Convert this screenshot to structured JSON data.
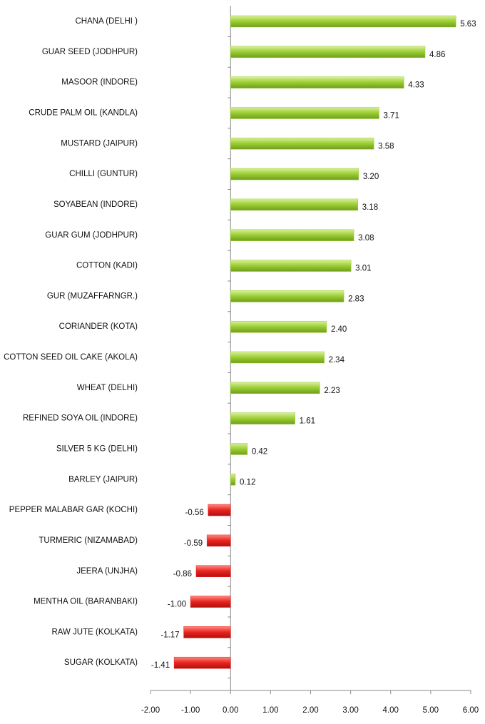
{
  "chart_data": {
    "type": "hbar",
    "categories": [
      "CHANA (DELHI )",
      "GUAR SEED (JODHPUR)",
      "MASOOR (INDORE)",
      "CRUDE PALM OIL (KANDLA)",
      "MUSTARD (JAIPUR)",
      "CHILLI (GUNTUR)",
      "SOYABEAN (INDORE)",
      "GUAR GUM (JODHPUR)",
      "COTTON (KADI)",
      "GUR (MUZAFFARNGR.)",
      "CORIANDER (KOTA)",
      "COTTON SEED OIL CAKE (AKOLA)",
      "WHEAT (DELHI)",
      "REFINED SOYA OIL (INDORE)",
      "SILVER 5 KG (DELHI)",
      "BARLEY (JAIPUR)",
      "PEPPER MALABAR GAR (KOCHI)",
      "TURMERIC (NIZAMABAD)",
      "JEERA (UNJHA)",
      "MENTHA OIL (BARANBAKI)",
      "RAW JUTE (KOLKATA)",
      "SUGAR (KOLKATA)"
    ],
    "values": [
      5.63,
      4.86,
      4.33,
      3.71,
      3.58,
      3.2,
      3.18,
      3.08,
      3.01,
      2.83,
      2.4,
      2.34,
      2.23,
      1.61,
      0.42,
      0.12,
      -0.56,
      -0.59,
      -0.86,
      -1.0,
      -1.17,
      -1.41
    ],
    "value_labels": [
      "5.63",
      "4.86",
      "4.33",
      "3.71",
      "3.58",
      "3.20",
      "3.18",
      "3.08",
      "3.01",
      "2.83",
      "2.40",
      "2.34",
      "2.23",
      "1.61",
      "0.42",
      "0.12",
      "-0.56",
      "-0.59",
      "-0.86",
      "-1.00",
      "-1.17",
      "-1.41"
    ],
    "positive_color": "#9acd32",
    "negative_color": "#e8231e",
    "xlim": [
      -2,
      6
    ],
    "xticks": [
      {
        "value": -2,
        "label": "-2.00"
      },
      {
        "value": -1,
        "label": "-1.00"
      },
      {
        "value": 0,
        "label": "0.00"
      },
      {
        "value": 1,
        "label": "1.00"
      },
      {
        "value": 2,
        "label": "2.00"
      },
      {
        "value": 3,
        "label": "3.00"
      },
      {
        "value": 4,
        "label": "4.00"
      },
      {
        "value": 5,
        "label": "5.00"
      },
      {
        "value": 6,
        "label": "6.00"
      }
    ],
    "grid": false
  }
}
